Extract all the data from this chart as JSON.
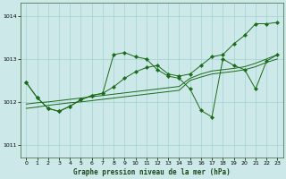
{
  "title": "Graphe pression niveau de la mer (hPa)",
  "bg_color": "#cce8e8",
  "grid_color": "#99cccc",
  "line_color": "#1a6b1a",
  "xlim": [
    -0.5,
    23.5
  ],
  "ylim": [
    1010.7,
    1014.3
  ],
  "yticks": [
    1011,
    1012,
    1013,
    1014
  ],
  "xticks": [
    0,
    1,
    2,
    3,
    4,
    5,
    6,
    7,
    8,
    9,
    10,
    11,
    12,
    13,
    14,
    15,
    16,
    17,
    18,
    19,
    20,
    21,
    22,
    23
  ],
  "s_main": [
    1012.45,
    1012.1,
    1011.85,
    1011.78,
    1011.9,
    1012.05,
    1012.15,
    1012.2,
    1013.1,
    1013.15,
    1013.05,
    1013.0,
    1012.75,
    1012.6,
    1012.55,
    1012.3,
    1011.8,
    1011.65,
    1013.0,
    1012.85,
    1012.75,
    1012.3,
    1012.95,
    1013.1
  ],
  "s_upper": [
    1012.45,
    1012.1,
    1011.85,
    1011.78,
    1011.9,
    1012.05,
    1012.15,
    1012.2,
    1012.35,
    1012.55,
    1012.7,
    1012.8,
    1012.85,
    1012.65,
    1012.6,
    1012.65,
    1012.85,
    1013.05,
    1013.1,
    1013.35,
    1013.55,
    1013.82,
    1013.82,
    1013.85
  ],
  "s_trend1": [
    1011.95,
    1011.98,
    1012.0,
    1012.03,
    1012.06,
    1012.09,
    1012.12,
    1012.15,
    1012.18,
    1012.21,
    1012.24,
    1012.27,
    1012.3,
    1012.33,
    1012.36,
    1012.55,
    1012.65,
    1012.72,
    1012.75,
    1012.78,
    1012.82,
    1012.9,
    1013.0,
    1013.1
  ],
  "s_trend2": [
    1011.85,
    1011.88,
    1011.92,
    1011.95,
    1011.98,
    1012.0,
    1012.03,
    1012.06,
    1012.09,
    1012.12,
    1012.15,
    1012.18,
    1012.21,
    1012.24,
    1012.27,
    1012.5,
    1012.58,
    1012.65,
    1012.68,
    1012.71,
    1012.75,
    1012.82,
    1012.92,
    1013.0
  ]
}
